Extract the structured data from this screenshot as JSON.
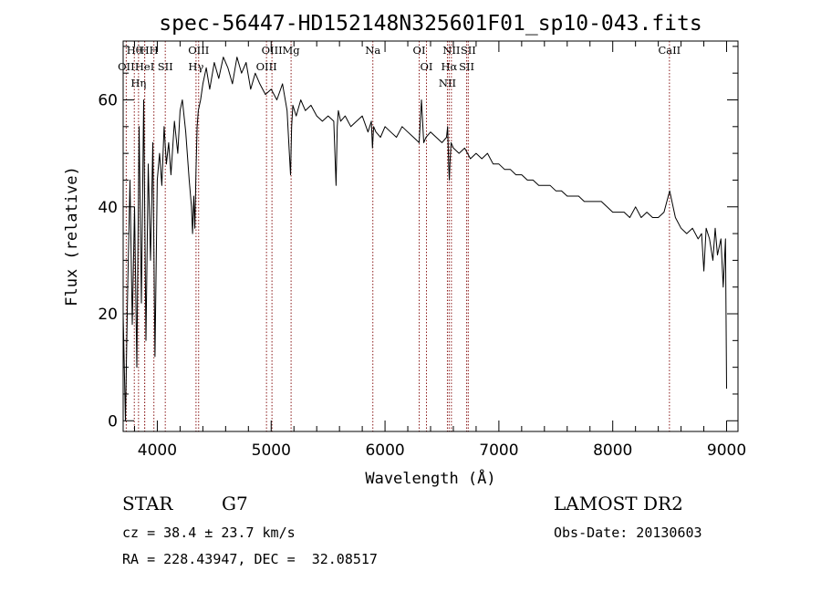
{
  "chart_data": {
    "type": "line",
    "title": "spec-56447-HD152148N325601F01_sp10-043.fits",
    "xlabel": "Wavelength (Å)",
    "ylabel": "Flux (relative)",
    "xlim": [
      3700,
      9100
    ],
    "ylim": [
      -2,
      71
    ],
    "xticks": [
      4000,
      5000,
      6000,
      7000,
      8000,
      9000
    ],
    "yticks": [
      0,
      20,
      40,
      60
    ],
    "grid": false,
    "legend": "none",
    "line_color": "#000000",
    "marker_color": "#8b1a1a",
    "spectral_lines": [
      {
        "label": "Hθ",
        "x": 3798
      },
      {
        "label": "OII",
        "x": 3727
      },
      {
        "label": "H",
        "x": 3889
      },
      {
        "label": "HeI",
        "x": 3889
      },
      {
        "label": "Hη",
        "x": 3835
      },
      {
        "label": "H",
        "x": 3970
      },
      {
        "label": "SII",
        "x": 4070
      },
      {
        "label": "OIII",
        "x": 4363
      },
      {
        "label": "Hγ",
        "x": 4340
      },
      {
        "label": "OIII",
        "x": 5007
      },
      {
        "label": "OIII",
        "x": 4959
      },
      {
        "label": "Mg",
        "x": 5175
      },
      {
        "label": "Na",
        "x": 5893
      },
      {
        "label": "OI",
        "x": 6300
      },
      {
        "label": "OI",
        "x": 6364
      },
      {
        "label": "NII",
        "x": 6583
      },
      {
        "label": "Hα",
        "x": 6563
      },
      {
        "label": "NII",
        "x": 6548
      },
      {
        "label": "SII",
        "x": 6717
      },
      {
        "label": "SII",
        "x": 6731
      },
      {
        "label": "CaII",
        "x": 8498
      }
    ],
    "spectrum": {
      "x": [
        3700,
        3720,
        3740,
        3760,
        3780,
        3800,
        3820,
        3840,
        3860,
        3880,
        3900,
        3920,
        3940,
        3960,
        3980,
        4000,
        4020,
        4040,
        4060,
        4080,
        4100,
        4120,
        4150,
        4180,
        4200,
        4220,
        4250,
        4280,
        4300,
        4310,
        4320,
        4330,
        4340,
        4350,
        4360,
        4380,
        4400,
        4430,
        4460,
        4500,
        4540,
        4580,
        4620,
        4660,
        4700,
        4740,
        4780,
        4820,
        4860,
        4900,
        4950,
        5000,
        5050,
        5100,
        5140,
        5160,
        5170,
        5180,
        5190,
        5220,
        5260,
        5300,
        5350,
        5400,
        5450,
        5500,
        5550,
        5570,
        5580,
        5590,
        5610,
        5650,
        5700,
        5750,
        5800,
        5850,
        5880,
        5890,
        5900,
        5920,
        5960,
        6000,
        6050,
        6100,
        6150,
        6200,
        6250,
        6300,
        6320,
        6340,
        6360,
        6400,
        6450,
        6500,
        6540,
        6550,
        6560,
        6565,
        6570,
        6580,
        6600,
        6650,
        6700,
        6750,
        6800,
        6850,
        6900,
        6950,
        7000,
        7050,
        7100,
        7150,
        7200,
        7250,
        7300,
        7350,
        7400,
        7450,
        7500,
        7550,
        7600,
        7650,
        7700,
        7750,
        7800,
        7850,
        7900,
        7950,
        8000,
        8050,
        8100,
        8150,
        8200,
        8250,
        8300,
        8350,
        8400,
        8450,
        8500,
        8550,
        8600,
        8650,
        8700,
        8750,
        8780,
        8800,
        8820,
        8850,
        8880,
        8900,
        8920,
        8950,
        8970,
        8990,
        9000
      ],
      "y": [
        20,
        0,
        25,
        45,
        18,
        40,
        10,
        55,
        22,
        60,
        15,
        48,
        30,
        52,
        12,
        45,
        50,
        44,
        55,
        48,
        52,
        46,
        56,
        50,
        58,
        60,
        54,
        45,
        40,
        35,
        42,
        36,
        47,
        55,
        58,
        60,
        63,
        66,
        62,
        67,
        64,
        68,
        66,
        63,
        68,
        65,
        67,
        62,
        65,
        63,
        61,
        62,
        60,
        63,
        58,
        50,
        46,
        55,
        59,
        57,
        60,
        58,
        59,
        57,
        56,
        57,
        56,
        44,
        55,
        58,
        56,
        57,
        55,
        56,
        57,
        54,
        56,
        51,
        55,
        54,
        53,
        55,
        54,
        53,
        55,
        54,
        53,
        52,
        60,
        52,
        53,
        54,
        53,
        52,
        53,
        55,
        47,
        45,
        48,
        52,
        51,
        50,
        51,
        49,
        50,
        49,
        50,
        48,
        48,
        47,
        47,
        46,
        46,
        45,
        45,
        44,
        44,
        44,
        43,
        43,
        42,
        42,
        42,
        41,
        41,
        41,
        41,
        40,
        39,
        39,
        39,
        38,
        40,
        38,
        39,
        38,
        38,
        39,
        43,
        38,
        36,
        35,
        36,
        34,
        35,
        28,
        36,
        34,
        30,
        36,
        31,
        34,
        25,
        34,
        6
      ]
    }
  },
  "info": {
    "obj_class": "STAR",
    "subclass": "G7",
    "cz": "cz = 38.4 ± 23.7 km/s",
    "coords": "RA = 228.43947, DEC =  32.08517",
    "survey": "LAMOST DR2",
    "obs_date": "Obs-Date: 20130603"
  }
}
